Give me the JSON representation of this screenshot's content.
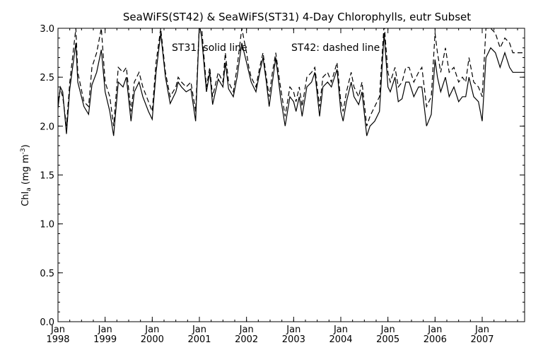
{
  "chart_data": {
    "type": "line",
    "title": "SeaWiFS(ST42) & SeaWiFS(ST31) 4-Day Chlorophylls, eutr Subset",
    "annotation": {
      "solid": "ST31: solid line",
      "dashed": "ST42: dashed line"
    },
    "ylabel": {
      "main": "Chl",
      "sub": "a",
      "unit_open": " (mg m",
      "unit_sup": "-3",
      "unit_close": ")"
    },
    "xlabel": "",
    "ylim": [
      0.0,
      3.0
    ],
    "xlim": [
      1998.0,
      2007.9
    ],
    "y_ticks": [
      "0.0",
      "0.5",
      "1.0",
      "1.5",
      "2.0",
      "2.5",
      "3.0"
    ],
    "x_ticks": [
      {
        "month": "Jan",
        "year": "1998",
        "value": 1998
      },
      {
        "month": "Jan",
        "year": "1999",
        "value": 1999
      },
      {
        "month": "Jan",
        "year": "2000",
        "value": 2000
      },
      {
        "month": "Jan",
        "year": "2001",
        "value": 2001
      },
      {
        "month": "Jan",
        "year": "2002",
        "value": 2002
      },
      {
        "month": "Jan",
        "year": "2003",
        "value": 2003
      },
      {
        "month": "Jan",
        "year": "2004",
        "value": 2004
      },
      {
        "month": "Jan",
        "year": "2005",
        "value": 2005
      },
      {
        "month": "Jan",
        "year": "2006",
        "value": 2006
      },
      {
        "month": "Jan",
        "year": "2007",
        "value": 2007
      }
    ],
    "grid": false,
    "series": [
      {
        "name": "ST31",
        "style": "solid",
        "x": [
          1998.0,
          1998.05,
          1998.1,
          1998.18,
          1998.25,
          1998.38,
          1998.42,
          1998.55,
          1998.65,
          1998.72,
          1998.82,
          1998.92,
          1999.0,
          1999.1,
          1999.18,
          1999.28,
          1999.38,
          1999.45,
          1999.55,
          1999.62,
          1999.72,
          1999.8,
          1999.92,
          2000.0,
          2000.08,
          2000.18,
          2000.28,
          2000.38,
          2000.5,
          2000.55,
          2000.62,
          2000.72,
          2000.82,
          2000.92,
          2001.0,
          2001.05,
          2001.15,
          2001.22,
          2001.28,
          2001.4,
          2001.5,
          2001.55,
          2001.62,
          2001.72,
          2001.8,
          2001.9,
          2002.0,
          2002.05,
          2002.1,
          2002.2,
          2002.28,
          2002.35,
          2002.42,
          2002.48,
          2002.55,
          2002.62,
          2002.72,
          2002.82,
          2002.92,
          2003.0,
          2003.05,
          2003.12,
          2003.18,
          2003.28,
          2003.38,
          2003.45,
          2003.55,
          2003.62,
          2003.72,
          2003.8,
          2003.92,
          2004.0,
          2004.05,
          2004.12,
          2004.22,
          2004.28,
          2004.38,
          2004.45,
          2004.55,
          2004.62,
          2004.72,
          2004.82,
          2004.92,
          2005.0,
          2005.05,
          2005.15,
          2005.22,
          2005.3,
          2005.38,
          2005.45,
          2005.55,
          2005.65,
          2005.72,
          2005.82,
          2005.92,
          2006.0,
          2006.05,
          2006.12,
          2006.22,
          2006.3,
          2006.4,
          2006.5,
          2006.58,
          2006.65,
          2006.72,
          2006.82,
          2006.92,
          2007.0,
          2007.08,
          2007.18,
          2007.28,
          2007.38,
          2007.48,
          2007.58,
          2007.65,
          2007.72,
          2007.8,
          2007.9
        ],
        "values": [
          2.18,
          2.4,
          2.35,
          1.92,
          2.38,
          2.85,
          2.45,
          2.2,
          2.12,
          2.42,
          2.55,
          2.78,
          2.35,
          2.15,
          1.9,
          2.45,
          2.4,
          2.5,
          2.05,
          2.35,
          2.45,
          2.3,
          2.15,
          2.07,
          2.55,
          2.95,
          2.5,
          2.23,
          2.35,
          2.45,
          2.4,
          2.35,
          2.38,
          2.05,
          3.05,
          2.9,
          2.35,
          2.55,
          2.22,
          2.48,
          2.4,
          2.65,
          2.38,
          2.3,
          2.5,
          2.85,
          2.65,
          2.55,
          2.45,
          2.35,
          2.55,
          2.7,
          2.45,
          2.2,
          2.45,
          2.7,
          2.3,
          2.0,
          2.3,
          2.25,
          2.15,
          2.3,
          2.1,
          2.4,
          2.45,
          2.55,
          2.1,
          2.4,
          2.45,
          2.4,
          2.58,
          2.15,
          2.05,
          2.25,
          2.45,
          2.3,
          2.22,
          2.35,
          1.9,
          2.0,
          2.05,
          2.15,
          2.95,
          2.4,
          2.35,
          2.5,
          2.25,
          2.28,
          2.45,
          2.45,
          2.3,
          2.4,
          2.4,
          2.0,
          2.12,
          2.68,
          2.5,
          2.35,
          2.5,
          2.3,
          2.4,
          2.25,
          2.3,
          2.3,
          2.5,
          2.3,
          2.25,
          2.05,
          2.7,
          2.8,
          2.75,
          2.6,
          2.75,
          2.6,
          2.55,
          2.55,
          2.55,
          2.55
        ]
      },
      {
        "name": "ST42",
        "style": "dashed",
        "x": [
          1998.0,
          1998.05,
          1998.1,
          1998.18,
          1998.25,
          1998.38,
          1998.42,
          1998.55,
          1998.65,
          1998.72,
          1998.82,
          1998.92,
          1999.0,
          1999.1,
          1999.18,
          1999.28,
          1999.38,
          1999.45,
          1999.55,
          1999.62,
          1999.72,
          1999.8,
          1999.92,
          2000.0,
          2000.08,
          2000.18,
          2000.28,
          2000.38,
          2000.5,
          2000.55,
          2000.62,
          2000.72,
          2000.82,
          2000.92,
          2001.0,
          2001.05,
          2001.15,
          2001.22,
          2001.28,
          2001.4,
          2001.5,
          2001.55,
          2001.62,
          2001.72,
          2001.8,
          2001.9,
          2002.0,
          2002.05,
          2002.1,
          2002.2,
          2002.28,
          2002.35,
          2002.42,
          2002.48,
          2002.55,
          2002.62,
          2002.72,
          2002.82,
          2002.92,
          2003.0,
          2003.05,
          2003.12,
          2003.18,
          2003.28,
          2003.38,
          2003.45,
          2003.55,
          2003.62,
          2003.72,
          2003.8,
          2003.92,
          2004.0,
          2004.05,
          2004.12,
          2004.22,
          2004.28,
          2004.38,
          2004.45,
          2004.55,
          2004.62,
          2004.72,
          2004.82,
          2004.92,
          2005.0,
          2005.05,
          2005.15,
          2005.22,
          2005.3,
          2005.38,
          2005.45,
          2005.55,
          2005.65,
          2005.72,
          2005.82,
          2005.92,
          2006.0,
          2006.05,
          2006.12,
          2006.22,
          2006.3,
          2006.4,
          2006.5,
          2006.58,
          2006.65,
          2006.72,
          2006.82,
          2006.92,
          2007.0,
          2007.08,
          2007.18,
          2007.28,
          2007.38,
          2007.48,
          2007.58,
          2007.65,
          2007.72,
          2007.8,
          2007.9
        ],
        "values": [
          2.25,
          2.38,
          2.3,
          2.0,
          2.45,
          3.0,
          2.55,
          2.25,
          2.2,
          2.6,
          2.75,
          3.0,
          2.45,
          2.3,
          2.0,
          2.6,
          2.55,
          2.6,
          2.15,
          2.45,
          2.55,
          2.4,
          2.25,
          2.15,
          2.65,
          3.0,
          2.55,
          2.3,
          2.4,
          2.5,
          2.45,
          2.4,
          2.45,
          2.15,
          3.05,
          3.0,
          2.4,
          2.6,
          2.3,
          2.55,
          2.45,
          2.75,
          2.45,
          2.35,
          2.6,
          3.0,
          2.75,
          2.6,
          2.5,
          2.4,
          2.6,
          2.75,
          2.5,
          2.3,
          2.55,
          2.75,
          2.4,
          2.1,
          2.4,
          2.35,
          2.25,
          2.4,
          2.2,
          2.5,
          2.55,
          2.6,
          2.2,
          2.5,
          2.55,
          2.45,
          2.65,
          2.25,
          2.15,
          2.35,
          2.55,
          2.4,
          2.3,
          2.45,
          2.0,
          2.1,
          2.2,
          2.3,
          3.05,
          2.55,
          2.45,
          2.6,
          2.4,
          2.45,
          2.6,
          2.6,
          2.45,
          2.55,
          2.6,
          2.2,
          2.3,
          2.95,
          2.75,
          2.55,
          2.8,
          2.55,
          2.6,
          2.45,
          2.5,
          2.45,
          2.7,
          2.45,
          2.4,
          2.3,
          3.0,
          3.0,
          2.95,
          2.8,
          2.9,
          2.85,
          2.75,
          2.75,
          2.75,
          2.75
        ]
      }
    ]
  }
}
